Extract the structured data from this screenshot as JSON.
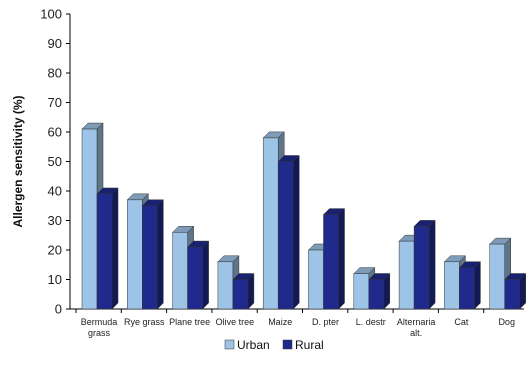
{
  "chart_data": {
    "type": "bar",
    "title": "",
    "xlabel": "",
    "ylabel": "Allergen sensitivity (%)",
    "ylim": [
      0,
      100
    ],
    "yticks": [
      0,
      10,
      20,
      30,
      40,
      50,
      60,
      70,
      80,
      90,
      100
    ],
    "categories": [
      [
        "Bermuda",
        "grass"
      ],
      [
        "Rye grass"
      ],
      [
        "Plane tree"
      ],
      [
        "Olive tree"
      ],
      [
        "Maize"
      ],
      [
        "D. pter"
      ],
      [
        "L. destr"
      ],
      [
        "Alternaria",
        "alt."
      ],
      [
        "Cat"
      ],
      [
        "Dog"
      ]
    ],
    "series": [
      {
        "name": "Urban",
        "color": "#9dc3e6",
        "values": [
          61,
          37,
          26,
          16,
          58,
          20,
          12,
          23,
          16,
          22
        ]
      },
      {
        "name": "Rural",
        "color": "#1f2a8c",
        "values": [
          39,
          35,
          21,
          10,
          50,
          32,
          10,
          28,
          14,
          10
        ]
      }
    ],
    "grid": false,
    "legend_position": "bottom",
    "style": "3d-bar"
  }
}
